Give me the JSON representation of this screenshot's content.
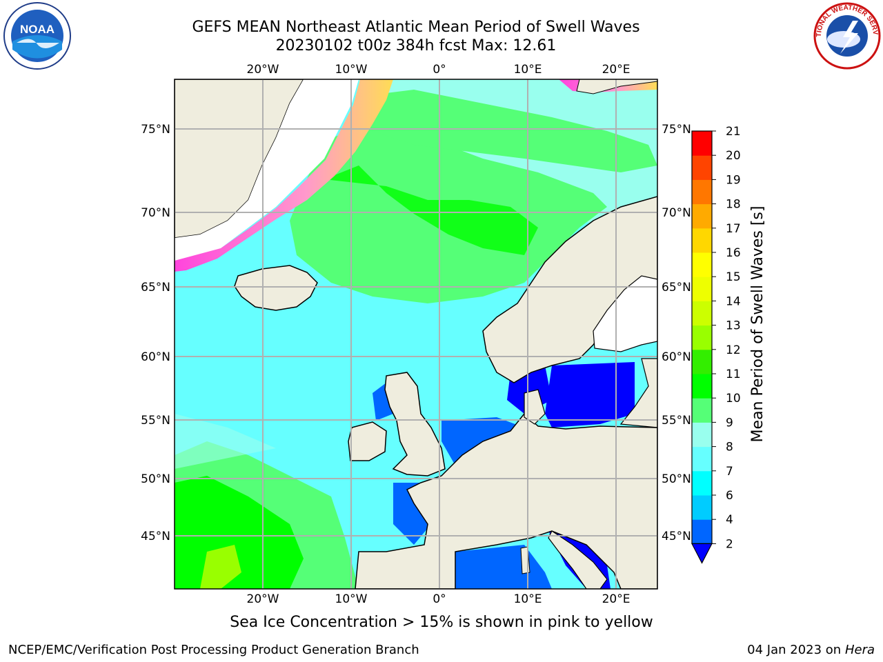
{
  "title": {
    "line1": "GEFS MEAN Northeast Atlantic Mean Period of Swell Waves",
    "line2": "20230102 t00z 384h fcst   Max: 12.61"
  },
  "logos": {
    "left": {
      "icon": "noaa-logo",
      "text": "NOAA"
    },
    "right": {
      "icon": "nws-logo",
      "text": "NATIONAL WEATHER SERVICE"
    }
  },
  "map": {
    "lon_labels": [
      "20°W",
      "10°W",
      "0°",
      "10°E",
      "20°E"
    ],
    "lat_labels": [
      "75°N",
      "70°N",
      "65°N",
      "60°N",
      "55°N",
      "50°N",
      "45°N"
    ],
    "colors": {
      "land": "#efedde",
      "ice_region": "#ffffff",
      "grid": "#b0b0b0",
      "sea_ice": "#ff44dd"
    }
  },
  "colorbar": {
    "label": "Mean Period of Swell Waves [s]",
    "ticks": [
      "2",
      "4",
      "6",
      "7",
      "8",
      "9",
      "10",
      "11",
      "12",
      "13",
      "14",
      "15",
      "16",
      "17",
      "18",
      "19",
      "20",
      "21"
    ],
    "colors": [
      "#0066ff",
      "#00ccff",
      "#00ffff",
      "#66ffff",
      "#99ffee",
      "#55ff77",
      "#00ff00",
      "#33ee00",
      "#99ff00",
      "#ccff00",
      "#eeff00",
      "#ffff00",
      "#ffd700",
      "#ffaa00",
      "#ff7700",
      "#ff4400",
      "#ff0000"
    ],
    "under_color": "#0000ff"
  },
  "note": "Sea Ice Concentration > 15% is shown in pink to yellow",
  "footer": {
    "left": "NCEP/EMC/Verification Post Processing Product Generation Branch",
    "right_date": "04 Jan 2023 on",
    "right_host": "Hera"
  }
}
